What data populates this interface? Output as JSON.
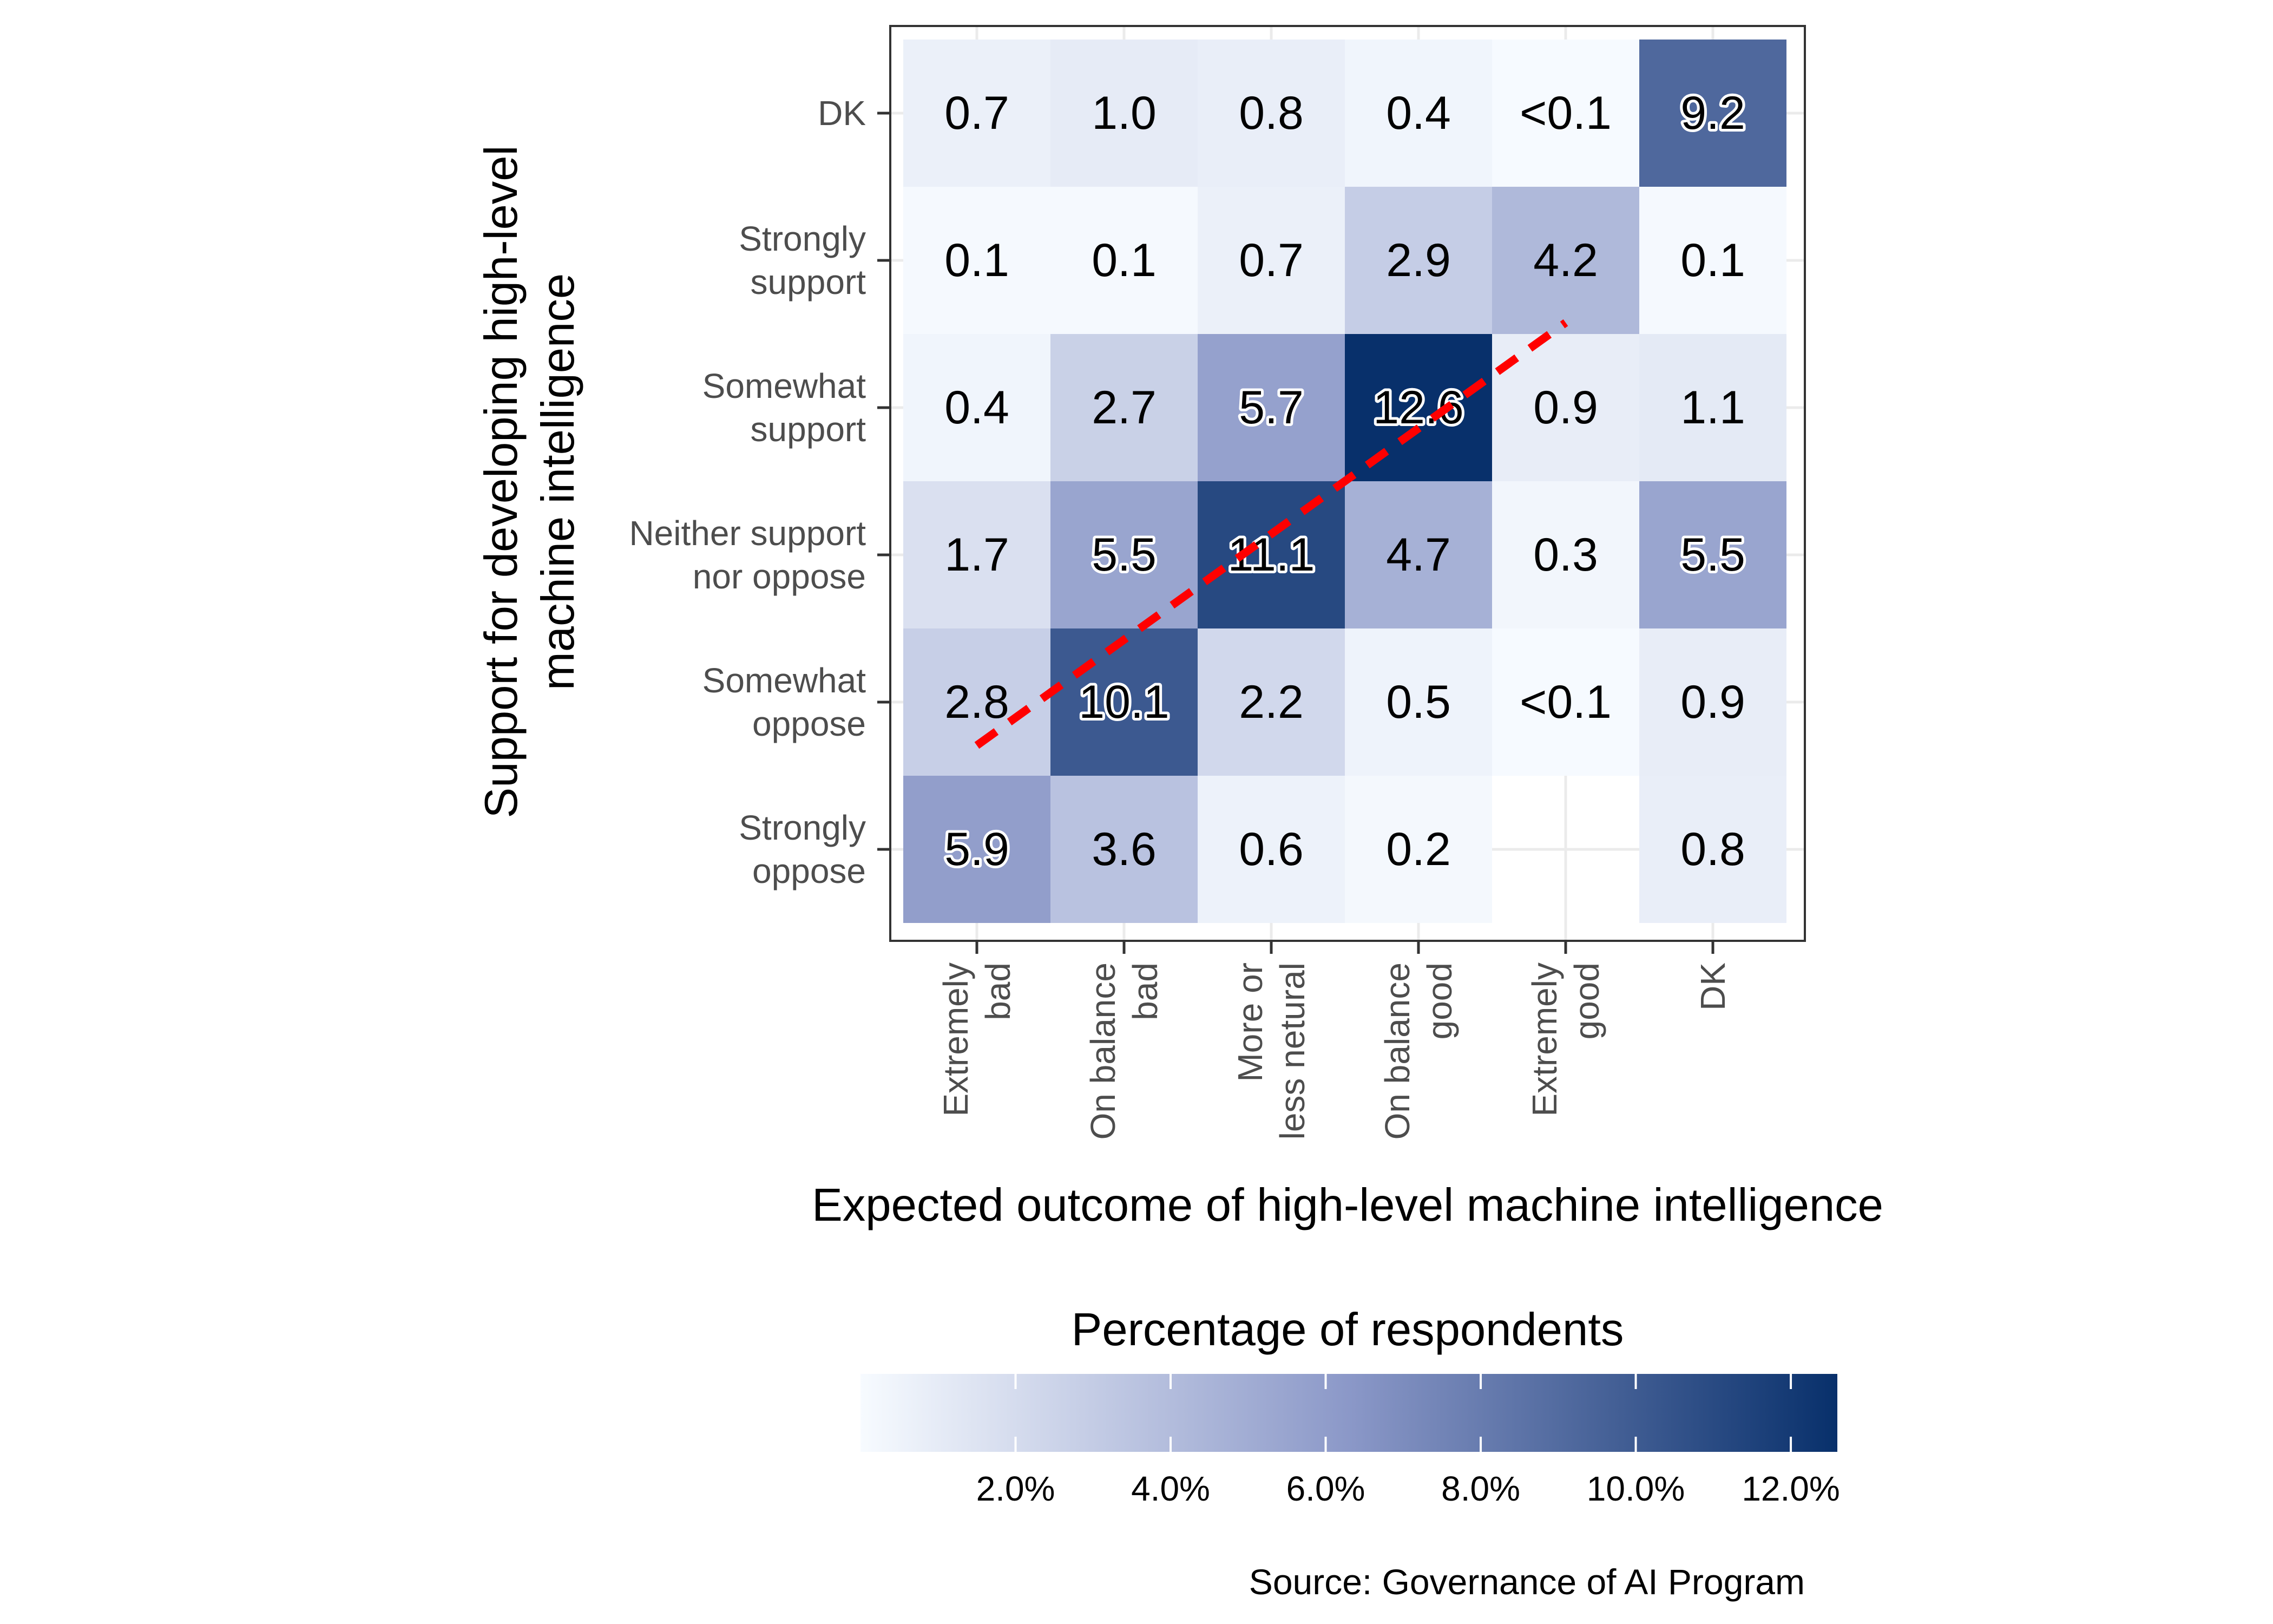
{
  "chart_data": {
    "type": "heatmap",
    "xlabel": "Expected outcome of high-level machine intelligence",
    "ylabel": [
      "Support for developing high-level",
      "machine intelligence"
    ],
    "x_categories": [
      [
        "Extremely",
        "bad"
      ],
      [
        "On balance",
        "bad"
      ],
      [
        "More or",
        "less netural"
      ],
      [
        "On balance",
        "good"
      ],
      [
        "Extremely",
        "good"
      ],
      [
        "DK"
      ]
    ],
    "y_categories_top_to_bottom": [
      [
        "DK"
      ],
      [
        "Strongly",
        "support"
      ],
      [
        "Somewhat",
        "support"
      ],
      [
        "Neither support",
        "nor oppose"
      ],
      [
        "Somewhat",
        "oppose"
      ],
      [
        "Strongly",
        "oppose"
      ]
    ],
    "cells": [
      [
        {
          "label": "0.7",
          "value": 0.7
        },
        {
          "label": "1.0",
          "value": 1.0
        },
        {
          "label": "0.8",
          "value": 0.8
        },
        {
          "label": "0.4",
          "value": 0.4
        },
        {
          "label": "<0.1",
          "value": 0.05
        },
        {
          "label": "9.2",
          "value": 9.2
        }
      ],
      [
        {
          "label": "0.1",
          "value": 0.1
        },
        {
          "label": "0.1",
          "value": 0.1
        },
        {
          "label": "0.7",
          "value": 0.7
        },
        {
          "label": "2.9",
          "value": 2.9
        },
        {
          "label": "4.2",
          "value": 4.2
        },
        {
          "label": "0.1",
          "value": 0.1
        }
      ],
      [
        {
          "label": "0.4",
          "value": 0.4
        },
        {
          "label": "2.7",
          "value": 2.7
        },
        {
          "label": "5.7",
          "value": 5.7
        },
        {
          "label": "12.6",
          "value": 12.6
        },
        {
          "label": "0.9",
          "value": 0.9
        },
        {
          "label": "1.1",
          "value": 1.1
        }
      ],
      [
        {
          "label": "1.7",
          "value": 1.7
        },
        {
          "label": "5.5",
          "value": 5.5
        },
        {
          "label": "11.1",
          "value": 11.1
        },
        {
          "label": "4.7",
          "value": 4.7
        },
        {
          "label": "0.3",
          "value": 0.3
        },
        {
          "label": "5.5",
          "value": 5.5
        }
      ],
      [
        {
          "label": "2.8",
          "value": 2.8
        },
        {
          "label": "10.1",
          "value": 10.1
        },
        {
          "label": "2.2",
          "value": 2.2
        },
        {
          "label": "0.5",
          "value": 0.5
        },
        {
          "label": "<0.1",
          "value": 0.05
        },
        {
          "label": "0.9",
          "value": 0.9
        }
      ],
      [
        {
          "label": "5.9",
          "value": 5.9
        },
        {
          "label": "3.6",
          "value": 3.6
        },
        {
          "label": "0.6",
          "value": 0.6
        },
        {
          "label": "0.2",
          "value": 0.2
        },
        null,
        {
          "label": "0.8",
          "value": 0.8
        }
      ]
    ],
    "color_scale": {
      "low": "#f7fbff",
      "high": "#08306b",
      "domain": [
        0,
        12.6
      ]
    },
    "legend": {
      "title": "Percentage of respondents",
      "ticks": [
        {
          "value": 2,
          "label": "2.0%"
        },
        {
          "value": 4,
          "label": "4.0%"
        },
        {
          "value": 6,
          "label": "6.0%"
        },
        {
          "value": 8,
          "label": "8.0%"
        },
        {
          "value": 10,
          "label": "10.0%"
        },
        {
          "value": 12,
          "label": "12.0%"
        }
      ],
      "range": [
        0,
        12.6
      ],
      "placement": "bottom"
    },
    "diagonal_line": {
      "color": "#ff0000",
      "style": "dashed",
      "from": {
        "x_category": "Extremely bad",
        "y_category": "Somewhat oppose"
      },
      "to": {
        "x_category": "Extremely good",
        "y_category": "Strongly support"
      }
    },
    "grid": true
  },
  "caption": "Source: Governance of AI Program"
}
